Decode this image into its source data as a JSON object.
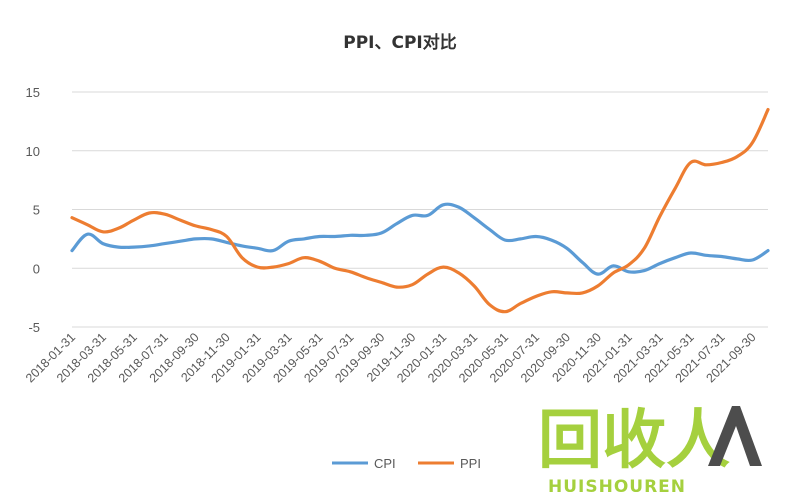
{
  "chart_data": {
    "type": "line",
    "title": "PPI、CPI对比",
    "ylim": [
      -5,
      15
    ],
    "yticks": [
      -5,
      0,
      5,
      10,
      15
    ],
    "grid": true,
    "legend_position": "bottom",
    "x": [
      "2018-01-31",
      "2018-02-28",
      "2018-03-31",
      "2018-04-30",
      "2018-05-31",
      "2018-06-30",
      "2018-07-31",
      "2018-08-31",
      "2018-09-30",
      "2018-10-31",
      "2018-11-30",
      "2018-12-31",
      "2019-01-31",
      "2019-02-28",
      "2019-03-31",
      "2019-04-30",
      "2019-05-31",
      "2019-06-30",
      "2019-07-31",
      "2019-08-31",
      "2019-09-30",
      "2019-10-31",
      "2019-11-30",
      "2019-12-31",
      "2020-01-31",
      "2020-02-29",
      "2020-03-31",
      "2020-04-30",
      "2020-05-31",
      "2020-06-30",
      "2020-07-31",
      "2020-08-31",
      "2020-09-30",
      "2020-10-31",
      "2020-11-30",
      "2020-12-31",
      "2021-01-31",
      "2021-02-28",
      "2021-03-31",
      "2021-04-30",
      "2021-05-31",
      "2021-06-30",
      "2021-07-31",
      "2021-08-31",
      "2021-09-30",
      "2021-10-31"
    ],
    "x_tick_labels": [
      "2018-01-31",
      "2018-03-31",
      "2018-05-31",
      "2018-07-31",
      "2018-09-30",
      "2018-11-30",
      "2019-01-31",
      "2019-03-31",
      "2019-05-31",
      "2019-07-31",
      "2019-09-30",
      "2019-11-30",
      "2020-01-31",
      "2020-03-31",
      "2020-05-31",
      "2020-07-31",
      "2020-09-30",
      "2020-11-30",
      "2021-01-31",
      "2021-03-31",
      "2021-05-31",
      "2021-07-31",
      "2021-09-30"
    ],
    "series": [
      {
        "name": "CPI",
        "color": "#5b9bd5",
        "values": [
          1.5,
          2.9,
          2.1,
          1.8,
          1.8,
          1.9,
          2.1,
          2.3,
          2.5,
          2.5,
          2.2,
          1.9,
          1.7,
          1.5,
          2.3,
          2.5,
          2.7,
          2.7,
          2.8,
          2.8,
          3.0,
          3.8,
          4.5,
          4.5,
          5.4,
          5.2,
          4.3,
          3.3,
          2.4,
          2.5,
          2.7,
          2.4,
          1.7,
          0.5,
          -0.5,
          0.2,
          -0.3,
          -0.2,
          0.4,
          0.9,
          1.3,
          1.1,
          1.0,
          0.8,
          0.7,
          1.5
        ]
      },
      {
        "name": "PPI",
        "color": "#ed7d31",
        "values": [
          4.3,
          3.7,
          3.1,
          3.4,
          4.1,
          4.7,
          4.6,
          4.1,
          3.6,
          3.3,
          2.7,
          0.9,
          0.1,
          0.1,
          0.4,
          0.9,
          0.6,
          0.0,
          -0.3,
          -0.8,
          -1.2,
          -1.6,
          -1.4,
          -0.5,
          0.1,
          -0.4,
          -1.5,
          -3.1,
          -3.7,
          -3.0,
          -2.4,
          -2.0,
          -2.1,
          -2.1,
          -1.5,
          -0.4,
          0.3,
          1.7,
          4.4,
          6.8,
          9.0,
          8.8,
          9.0,
          9.5,
          10.7,
          13.5
        ]
      }
    ]
  },
  "watermark": {
    "cn_text": "回收人",
    "en_text": "HUISHOUREN",
    "color_green": "#9ccc2a",
    "color_dark": "#3a3a3a"
  }
}
